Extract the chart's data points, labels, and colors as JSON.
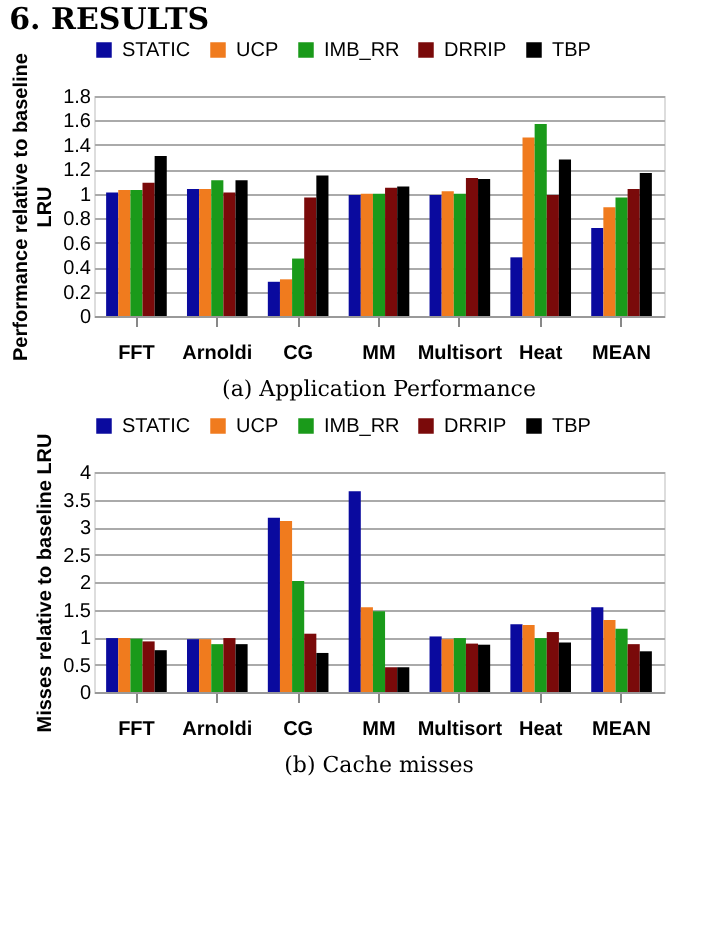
{
  "chart_data": [
    {
      "type": "bar",
      "annotations": [
        "6. RESULTS",
        "(a) Application Performance"
      ],
      "ylabel": "Performance relative to baseline\nLRU",
      "categories": [
        "FFT",
        "Arnoldi",
        "CG",
        "MM",
        "Multisort",
        "Heat",
        "MEAN"
      ],
      "series": [
        {
          "name": "STATIC",
          "color": "#0a0a9e",
          "values": [
            1.01,
            1.04,
            0.28,
            0.99,
            0.99,
            0.48,
            0.72
          ]
        },
        {
          "name": "UCP",
          "color": "#f07b1e",
          "values": [
            1.03,
            1.04,
            0.3,
            1.0,
            1.02,
            1.46,
            0.89
          ]
        },
        {
          "name": "IMB_RR",
          "color": "#1a9a1a",
          "values": [
            1.03,
            1.11,
            0.47,
            1.0,
            1.0,
            1.57,
            0.97
          ]
        },
        {
          "name": "DRRIP",
          "color": "#7a0a0a",
          "values": [
            1.09,
            1.01,
            0.97,
            1.05,
            1.13,
            0.99,
            1.04
          ]
        },
        {
          "name": "TBP",
          "color": "#000000",
          "values": [
            1.31,
            1.11,
            1.15,
            1.06,
            1.12,
            1.28,
            1.17
          ]
        }
      ],
      "ylim": [
        0,
        1.8
      ],
      "yticks": [
        0,
        0.2,
        0.4,
        0.6,
        0.8,
        1,
        1.2,
        1.4,
        1.6,
        1.8
      ],
      "grid": "y",
      "legend": "top"
    },
    {
      "type": "bar",
      "annotations": [
        "(b) Cache misses"
      ],
      "ylabel": "Misses relative to baseline LRU",
      "categories": [
        "FFT",
        "Arnoldi",
        "CG",
        "MM",
        "Multisort",
        "Heat",
        "MEAN"
      ],
      "series": [
        {
          "name": "STATIC",
          "color": "#0a0a9e",
          "values": [
            0.98,
            0.96,
            3.17,
            3.65,
            1.01,
            1.23,
            1.54
          ]
        },
        {
          "name": "UCP",
          "color": "#f07b1e",
          "values": [
            0.98,
            0.96,
            3.11,
            1.54,
            0.96,
            1.22,
            1.31
          ]
        },
        {
          "name": "IMB_RR",
          "color": "#1a9a1a",
          "values": [
            0.97,
            0.87,
            2.02,
            1.47,
            0.98,
            0.98,
            1.15
          ]
        },
        {
          "name": "DRRIP",
          "color": "#7a0a0a",
          "values": [
            0.92,
            0.98,
            1.06,
            0.45,
            0.88,
            1.09,
            0.87
          ]
        },
        {
          "name": "TBP",
          "color": "#000000",
          "values": [
            0.76,
            0.87,
            0.71,
            0.45,
            0.86,
            0.9,
            0.74
          ]
        }
      ],
      "ylim": [
        0,
        4
      ],
      "yticks": [
        0,
        0.5,
        1,
        1.5,
        2,
        2.5,
        3,
        3.5,
        4
      ],
      "grid": "y",
      "legend": "top"
    }
  ]
}
